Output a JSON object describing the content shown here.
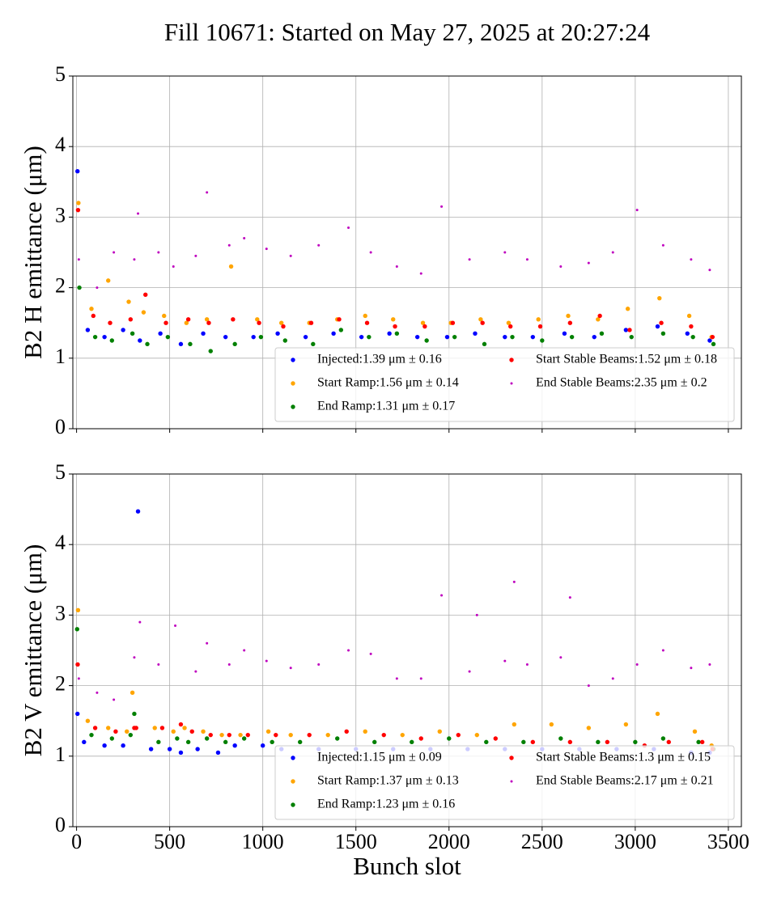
{
  "title": "Fill 10671: Started on May 27, 2025 at 20:27:24",
  "chart_data": [
    {
      "type": "scatter",
      "ylabel": "B2 H emittance (μm)",
      "xlim": [
        -20,
        3570
      ],
      "ylim": [
        0,
        5
      ],
      "xticks": [
        0,
        500,
        1000,
        1500,
        2000,
        2500,
        3000,
        3500
      ],
      "yticks": [
        0,
        1,
        2,
        3,
        4,
        5
      ],
      "xtick_labels": false,
      "grid": true,
      "legend": "lower right",
      "series": [
        {
          "name": "Injected:1.39 μm ± 0.16",
          "color": "#0000ff",
          "x": [
            5,
            60,
            150,
            250,
            340,
            450,
            560,
            680,
            800,
            950,
            1080,
            1230,
            1380,
            1530,
            1680,
            1830,
            1990,
            2140,
            2300,
            2450,
            2620,
            2780,
            2950,
            3120,
            3280,
            3400
          ],
          "values": [
            3.65,
            1.4,
            1.3,
            1.4,
            1.25,
            1.35,
            1.2,
            1.35,
            1.3,
            1.3,
            1.35,
            1.3,
            1.35,
            1.3,
            1.35,
            1.3,
            1.3,
            1.35,
            1.3,
            1.3,
            1.35,
            1.3,
            1.4,
            1.45,
            1.35,
            1.25
          ]
        },
        {
          "name": "Start Ramp:1.56 μm ± 0.14",
          "color": "#ffa500",
          "x": [
            10,
            80,
            170,
            280,
            360,
            470,
            590,
            700,
            830,
            970,
            1100,
            1250,
            1400,
            1550,
            1700,
            1860,
            2010,
            2170,
            2320,
            2480,
            2640,
            2800,
            2960,
            3130,
            3290,
            3410
          ],
          "values": [
            3.2,
            1.7,
            2.1,
            1.8,
            1.65,
            1.6,
            1.5,
            1.55,
            2.3,
            1.55,
            1.5,
            1.5,
            1.55,
            1.6,
            1.55,
            1.5,
            1.5,
            1.55,
            1.5,
            1.55,
            1.6,
            1.55,
            1.7,
            1.85,
            1.6,
            1.3
          ]
        },
        {
          "name": "End Ramp:1.31 μm ± 0.17",
          "color": "#008000",
          "x": [
            15,
            100,
            190,
            300,
            380,
            490,
            610,
            720,
            850,
            990,
            1120,
            1270,
            1420,
            1570,
            1720,
            1880,
            2030,
            2190,
            2340,
            2500,
            2660,
            2820,
            2980,
            3150,
            3310,
            3420
          ],
          "values": [
            2.0,
            1.3,
            1.25,
            1.35,
            1.2,
            1.3,
            1.2,
            1.1,
            1.2,
            1.3,
            1.25,
            1.2,
            1.4,
            1.3,
            1.35,
            1.25,
            1.3,
            1.2,
            1.3,
            1.25,
            1.3,
            1.35,
            1.3,
            1.35,
            1.3,
            1.2
          ]
        },
        {
          "name": "Start Stable Beams:1.52 μm ± 0.18",
          "color": "#ff0000",
          "x": [
            8,
            90,
            180,
            290,
            370,
            480,
            600,
            710,
            840,
            980,
            1110,
            1260,
            1410,
            1560,
            1710,
            1870,
            2020,
            2180,
            2330,
            2490,
            2650,
            2810,
            2970,
            3140,
            3300,
            3415
          ],
          "values": [
            3.1,
            1.6,
            1.5,
            1.55,
            1.9,
            1.5,
            1.55,
            1.5,
            1.55,
            1.5,
            1.45,
            1.5,
            1.55,
            1.5,
            1.45,
            1.45,
            1.5,
            1.5,
            1.45,
            1.45,
            1.5,
            1.6,
            1.4,
            1.5,
            1.45,
            1.3
          ]
        },
        {
          "name": "End Stable Beams:2.35 μm ± 0.2",
          "color": "#bf00bf",
          "x": [
            12,
            110,
            200,
            310,
            330,
            440,
            520,
            640,
            700,
            820,
            900,
            1020,
            1150,
            1300,
            1460,
            1580,
            1720,
            1850,
            1960,
            2110,
            2300,
            2420,
            2600,
            2750,
            2880,
            3010,
            3150,
            3300,
            3400
          ],
          "values": [
            2.4,
            2.0,
            2.5,
            2.4,
            3.05,
            2.5,
            2.3,
            2.45,
            3.35,
            2.6,
            2.7,
            2.55,
            2.45,
            2.6,
            2.85,
            2.5,
            2.3,
            2.2,
            3.15,
            2.4,
            2.5,
            2.4,
            2.3,
            2.35,
            2.5,
            3.1,
            2.6,
            2.4,
            2.25
          ]
        }
      ]
    },
    {
      "type": "scatter",
      "ylabel": "B2 V emittance (μm)",
      "xlabel": "Bunch slot",
      "xlim": [
        -20,
        3570
      ],
      "ylim": [
        0,
        5
      ],
      "xticks": [
        0,
        500,
        1000,
        1500,
        2000,
        2500,
        3000,
        3500
      ],
      "yticks": [
        0,
        1,
        2,
        3,
        4,
        5
      ],
      "xtick_labels": true,
      "grid": true,
      "legend": "lower right",
      "series": [
        {
          "name": "Injected:1.15 μm ± 0.09",
          "color": "#0000ff",
          "x": [
            5,
            40,
            150,
            250,
            330,
            400,
            500,
            560,
            650,
            760,
            850,
            1000,
            1100,
            1300,
            1500,
            1700,
            1900,
            2100,
            2300,
            2500,
            2700,
            2900,
            3100,
            3300,
            3400
          ],
          "values": [
            1.6,
            1.2,
            1.15,
            1.15,
            4.47,
            1.1,
            1.1,
            1.05,
            1.1,
            1.05,
            1.15,
            1.15,
            1.1,
            1.1,
            1.1,
            1.1,
            1.1,
            1.1,
            1.1,
            1.1,
            1.1,
            1.1,
            1.1,
            1.05,
            1.05
          ]
        },
        {
          "name": "Start Ramp:1.37 μm ± 0.13",
          "color": "#ffa500",
          "x": [
            8,
            60,
            170,
            270,
            300,
            420,
            520,
            580,
            680,
            780,
            880,
            1030,
            1150,
            1350,
            1550,
            1750,
            1950,
            2150,
            2350,
            2550,
            2750,
            2950,
            3120,
            3320,
            3410
          ],
          "values": [
            3.07,
            1.5,
            1.4,
            1.35,
            1.9,
            1.4,
            1.35,
            1.4,
            1.35,
            1.3,
            1.3,
            1.35,
            1.3,
            1.3,
            1.35,
            1.3,
            1.35,
            1.3,
            1.45,
            1.45,
            1.4,
            1.45,
            1.6,
            1.35,
            1.15
          ]
        },
        {
          "name": "End Ramp:1.23 μm ± 0.16",
          "color": "#008000",
          "x": [
            3,
            80,
            190,
            290,
            310,
            440,
            540,
            600,
            700,
            800,
            900,
            1050,
            1200,
            1400,
            1600,
            1800,
            2000,
            2200,
            2400,
            2600,
            2800,
            3000,
            3150,
            3340,
            3420
          ],
          "values": [
            2.8,
            1.3,
            1.25,
            1.3,
            1.6,
            1.2,
            1.25,
            1.2,
            1.25,
            1.2,
            1.25,
            1.2,
            1.2,
            1.25,
            1.2,
            1.2,
            1.25,
            1.2,
            1.2,
            1.25,
            1.2,
            1.2,
            1.25,
            1.2,
            1.1
          ]
        },
        {
          "name": "Start Stable Beams:1.3 μm ± 0.15",
          "color": "#ff0000",
          "x": [
            6,
            100,
            210,
            310,
            320,
            460,
            560,
            620,
            720,
            820,
            920,
            1070,
            1250,
            1450,
            1650,
            1850,
            2050,
            2250,
            2450,
            2650,
            2850,
            3050,
            3180,
            3360,
            3415
          ],
          "values": [
            2.3,
            1.4,
            1.35,
            1.4,
            1.4,
            1.4,
            1.45,
            1.35,
            1.3,
            1.3,
            1.3,
            1.3,
            1.3,
            1.35,
            1.3,
            1.25,
            1.3,
            1.25,
            1.2,
            1.2,
            1.2,
            1.15,
            1.2,
            1.2,
            1.1
          ]
        },
        {
          "name": "End Stable Beams:2.17 μm ± 0.21",
          "color": "#bf00bf",
          "x": [
            12,
            110,
            200,
            310,
            340,
            440,
            530,
            640,
            700,
            820,
            900,
            1020,
            1150,
            1300,
            1460,
            1580,
            1720,
            1850,
            1960,
            2110,
            2150,
            2300,
            2350,
            2420,
            2600,
            2650,
            2750,
            2880,
            3010,
            3150,
            3300,
            3400
          ],
          "values": [
            2.1,
            1.9,
            1.8,
            2.4,
            2.9,
            2.3,
            2.85,
            2.2,
            2.6,
            2.3,
            2.5,
            2.35,
            2.25,
            2.3,
            2.5,
            2.45,
            2.1,
            2.1,
            3.28,
            2.2,
            3.0,
            2.35,
            3.47,
            2.3,
            2.4,
            3.25,
            2.0,
            2.1,
            2.3,
            2.5,
            2.25,
            2.3
          ]
        }
      ]
    }
  ]
}
